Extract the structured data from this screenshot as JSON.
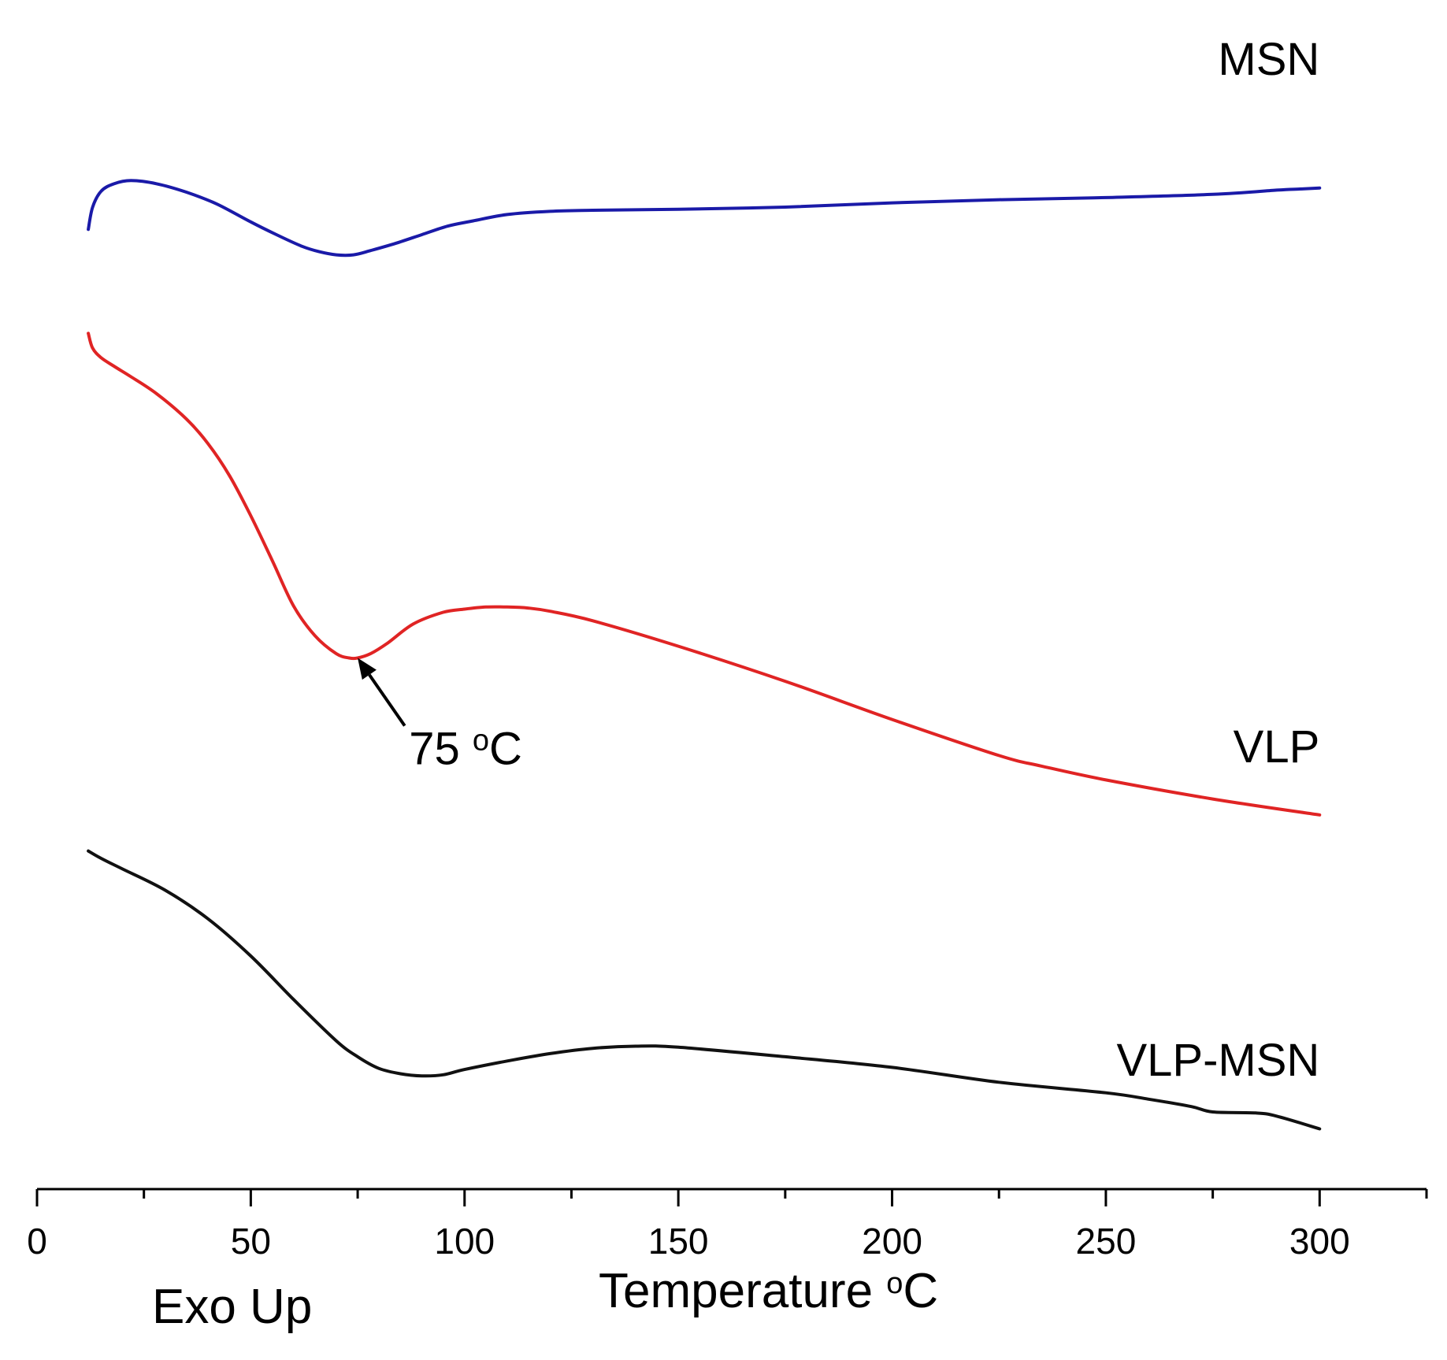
{
  "chart_data": {
    "type": "line",
    "title": "",
    "xlabel": "Temperature °C",
    "xlabel_main": "Temperature ",
    "xlabel_degree": "o",
    "xlabel_unit": "C",
    "ylabel": "",
    "footer_label": "Exo Up",
    "xlim": [
      0,
      325
    ],
    "x_ticks": [
      0,
      50,
      100,
      150,
      200,
      250,
      300
    ],
    "x_tick_labels": [
      "0",
      "50",
      "100",
      "150",
      "200",
      "250",
      "300"
    ],
    "x_minor_ticks": [
      25,
      75,
      125,
      175,
      225,
      275,
      325
    ],
    "grid": false,
    "y_axis_shown": false,
    "y_units": "arbitrary heat flow (vertically offset curves)",
    "series": [
      {
        "name": "MSN",
        "label": "MSN",
        "color": "#1a1aa8",
        "x": [
          12,
          13,
          15,
          18,
          22,
          28,
          35,
          42,
          50,
          56,
          62,
          66,
          70,
          74,
          78,
          84,
          90,
          96,
          102,
          110,
          120,
          130,
          150,
          175,
          200,
          225,
          250,
          275,
          290,
          295,
          300
        ],
        "y": [
          85.8,
          87.9,
          89.4,
          90.1,
          90.4,
          90.1,
          89.3,
          88.2,
          86.5,
          85.3,
          84.2,
          83.7,
          83.4,
          83.4,
          83.8,
          84.5,
          85.3,
          86.1,
          86.6,
          87.2,
          87.5,
          87.6,
          87.7,
          87.9,
          88.3,
          88.6,
          88.8,
          89.1,
          89.5,
          89.6,
          89.7
        ]
      },
      {
        "name": "VLP",
        "label": "VLP",
        "color": "#e02424",
        "x": [
          12,
          13,
          15,
          18,
          22,
          28,
          35,
          40,
          45,
          50,
          55,
          60,
          65,
          70,
          73,
          75,
          78,
          82,
          88,
          95,
          100,
          105,
          110,
          115,
          120,
          130,
          150,
          175,
          200,
          225,
          235,
          250,
          275,
          300
        ],
        "y": [
          76,
          74.6,
          73.7,
          72.9,
          71.9,
          70.3,
          67.9,
          65.6,
          62.6,
          58.8,
          54.6,
          50.3,
          47.5,
          45.8,
          45.4,
          45.4,
          45.8,
          46.8,
          48.6,
          49.7,
          50,
          50.2,
          50.2,
          50.1,
          49.8,
          48.9,
          46.5,
          43.2,
          39.6,
          36.2,
          35.2,
          33.9,
          32.1,
          30.6
        ]
      },
      {
        "name": "VLP-MSN",
        "label": "VLP-MSN",
        "color": "#111111",
        "x": [
          12,
          15,
          20,
          30,
          40,
          50,
          60,
          70,
          75,
          80,
          85,
          90,
          95,
          100,
          110,
          120,
          130,
          140,
          150,
          175,
          200,
          225,
          250,
          260,
          270,
          275,
          285,
          290,
          300
        ],
        "y": [
          27.2,
          26.5,
          25.5,
          23.5,
          20.8,
          17.3,
          13.2,
          9.3,
          7.8,
          6.7,
          6.2,
          6.0,
          6.1,
          6.6,
          7.4,
          8.1,
          8.6,
          8.8,
          8.7,
          7.8,
          6.8,
          5.4,
          4.4,
          3.8,
          3.1,
          2.6,
          2.5,
          2.2,
          1.0
        ]
      }
    ],
    "annotations": [
      {
        "text": "75 °C",
        "text_main": "75 ",
        "text_degree": "o",
        "text_unit": "C",
        "arrow_to_x": 75,
        "arrow_to_y": 45.4,
        "arrow_from_x": 86,
        "arrow_from_y": 39.0,
        "text_at_x": 87,
        "text_at_y": 37.0
      }
    ]
  }
}
